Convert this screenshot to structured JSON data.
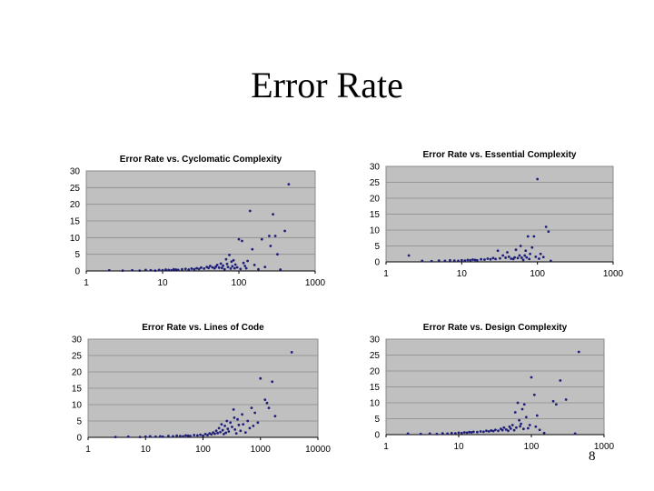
{
  "slide": {
    "title": "Error Rate",
    "page_number": "8"
  },
  "colors": {
    "plot_area": "#c0c0c0",
    "point": "#1f1f7a",
    "gridline": "#8a8a8a",
    "axis": "#000000"
  },
  "chart_data": [
    {
      "type": "scatter",
      "title": "Error Rate vs. Cyclomatic Complexity",
      "xlabel": "",
      "ylabel": "",
      "xscale": "log",
      "xlim": [
        1,
        1000
      ],
      "ylim": [
        0,
        30
      ],
      "xticks": [
        "1",
        "10",
        "100",
        "1000"
      ],
      "yticks": [
        "0",
        "5",
        "10",
        "15",
        "20",
        "25",
        "30"
      ],
      "grid": true,
      "points": [
        [
          2,
          0.2
        ],
        [
          3,
          0.1
        ],
        [
          4,
          0.2
        ],
        [
          5,
          0.1
        ],
        [
          6,
          0.3
        ],
        [
          7,
          0.2
        ],
        [
          8,
          0.1
        ],
        [
          9,
          0.3
        ],
        [
          10,
          0.2
        ],
        [
          11,
          0.4
        ],
        [
          12,
          0.3
        ],
        [
          13,
          0.2
        ],
        [
          14,
          0.5
        ],
        [
          15,
          0.4
        ],
        [
          16,
          0.3
        ],
        [
          18,
          0.5
        ],
        [
          20,
          0.6
        ],
        [
          22,
          0.4
        ],
        [
          24,
          0.7
        ],
        [
          26,
          0.5
        ],
        [
          28,
          0.8
        ],
        [
          30,
          0.6
        ],
        [
          32,
          1.0
        ],
        [
          35,
          0.7
        ],
        [
          38,
          1.2
        ],
        [
          40,
          0.9
        ],
        [
          42,
          1.5
        ],
        [
          45,
          1.1
        ],
        [
          48,
          0.8
        ],
        [
          50,
          1.3
        ],
        [
          52,
          1.8
        ],
        [
          55,
          1.0
        ],
        [
          58,
          2.2
        ],
        [
          60,
          0.9
        ],
        [
          62,
          1.6
        ],
        [
          65,
          0.5
        ],
        [
          68,
          3.5
        ],
        [
          70,
          2.1
        ],
        [
          72,
          1.2
        ],
        [
          75,
          4.8
        ],
        [
          78,
          0.7
        ],
        [
          80,
          2.8
        ],
        [
          82,
          1.4
        ],
        [
          85,
          3.2
        ],
        [
          88,
          0.8
        ],
        [
          90,
          1.9
        ],
        [
          95,
          1.1
        ],
        [
          100,
          9.5
        ],
        [
          105,
          0.6
        ],
        [
          110,
          9.0
        ],
        [
          115,
          2.4
        ],
        [
          120,
          1.5
        ],
        [
          125,
          0.8
        ],
        [
          130,
          3.0
        ],
        [
          140,
          18.0
        ],
        [
          150,
          6.5
        ],
        [
          160,
          1.8
        ],
        [
          180,
          0.5
        ],
        [
          200,
          9.5
        ],
        [
          220,
          1.2
        ],
        [
          250,
          10.5
        ],
        [
          260,
          7.5
        ],
        [
          280,
          17.0
        ],
        [
          300,
          10.5
        ],
        [
          320,
          5.0
        ],
        [
          350,
          0.4
        ],
        [
          400,
          12.0
        ],
        [
          450,
          26.0
        ]
      ]
    },
    {
      "type": "scatter",
      "title": "Error Rate vs. Essential Complexity",
      "xlabel": "",
      "ylabel": "",
      "xscale": "log",
      "xlim": [
        1,
        1000
      ],
      "ylim": [
        0,
        30
      ],
      "xticks": [
        "1",
        "10",
        "100",
        "1000"
      ],
      "yticks": [
        "0",
        "5",
        "10",
        "15",
        "20",
        "25",
        "30"
      ],
      "grid": true,
      "points": [
        [
          2,
          2.0
        ],
        [
          3,
          0.3
        ],
        [
          4,
          0.2
        ],
        [
          5,
          0.4
        ],
        [
          6,
          0.3
        ],
        [
          7,
          0.5
        ],
        [
          8,
          0.4
        ],
        [
          9,
          0.3
        ],
        [
          10,
          0.5
        ],
        [
          11,
          0.4
        ],
        [
          12,
          0.6
        ],
        [
          13,
          0.5
        ],
        [
          14,
          0.7
        ],
        [
          15,
          0.6
        ],
        [
          16,
          0.5
        ],
        [
          18,
          0.8
        ],
        [
          20,
          0.7
        ],
        [
          22,
          1.0
        ],
        [
          24,
          0.8
        ],
        [
          26,
          1.2
        ],
        [
          28,
          0.9
        ],
        [
          30,
          3.5
        ],
        [
          32,
          1.1
        ],
        [
          35,
          2.0
        ],
        [
          38,
          1.3
        ],
        [
          40,
          3.0
        ],
        [
          42,
          1.6
        ],
        [
          45,
          1.0
        ],
        [
          48,
          0.9
        ],
        [
          50,
          1.4
        ],
        [
          52,
          3.8
        ],
        [
          55,
          1.2
        ],
        [
          58,
          2.0
        ],
        [
          60,
          5.0
        ],
        [
          62,
          1.3
        ],
        [
          65,
          0.6
        ],
        [
          68,
          2.0
        ],
        [
          70,
          3.5
        ],
        [
          72,
          1.4
        ],
        [
          75,
          8.0
        ],
        [
          78,
          0.9
        ],
        [
          80,
          2.5
        ],
        [
          85,
          4.5
        ],
        [
          90,
          8.0
        ],
        [
          95,
          1.6
        ],
        [
          100,
          26.0
        ],
        [
          105,
          1.0
        ],
        [
          110,
          2.5
        ],
        [
          120,
          1.5
        ],
        [
          130,
          11.0
        ],
        [
          140,
          9.5
        ],
        [
          150,
          0.3
        ]
      ]
    },
    {
      "type": "scatter",
      "title": "Error Rate vs. Lines of Code",
      "xlabel": "",
      "ylabel": "",
      "xscale": "log",
      "xlim": [
        1,
        10000
      ],
      "ylim": [
        0,
        30
      ],
      "xticks": [
        "1",
        "10",
        "100",
        "1000",
        "10000"
      ],
      "yticks": [
        "0",
        "5",
        "10",
        "15",
        "20",
        "25",
        "30"
      ],
      "grid": true,
      "points": [
        [
          3,
          0.1
        ],
        [
          5,
          0.2
        ],
        [
          8,
          0.1
        ],
        [
          10,
          0.2
        ],
        [
          12,
          0.3
        ],
        [
          15,
          0.2
        ],
        [
          18,
          0.3
        ],
        [
          20,
          0.2
        ],
        [
          25,
          0.4
        ],
        [
          30,
          0.3
        ],
        [
          35,
          0.5
        ],
        [
          40,
          0.4
        ],
        [
          45,
          0.3
        ],
        [
          50,
          0.6
        ],
        [
          55,
          0.5
        ],
        [
          60,
          0.4
        ],
        [
          70,
          0.7
        ],
        [
          80,
          0.6
        ],
        [
          90,
          0.8
        ],
        [
          100,
          0.5
        ],
        [
          110,
          1.0
        ],
        [
          120,
          0.7
        ],
        [
          130,
          1.2
        ],
        [
          140,
          0.9
        ],
        [
          150,
          1.5
        ],
        [
          160,
          1.1
        ],
        [
          170,
          2.0
        ],
        [
          180,
          1.3
        ],
        [
          190,
          2.8
        ],
        [
          200,
          1.6
        ],
        [
          210,
          4.0
        ],
        [
          220,
          2.2
        ],
        [
          230,
          1.0
        ],
        [
          240,
          3.5
        ],
        [
          250,
          1.4
        ],
        [
          260,
          5.0
        ],
        [
          270,
          2.6
        ],
        [
          280,
          1.8
        ],
        [
          300,
          4.5
        ],
        [
          320,
          3.2
        ],
        [
          340,
          8.5
        ],
        [
          350,
          6.0
        ],
        [
          360,
          2.4
        ],
        [
          380,
          1.2
        ],
        [
          400,
          5.5
        ],
        [
          420,
          3.8
        ],
        [
          450,
          2.0
        ],
        [
          480,
          7.0
        ],
        [
          500,
          4.0
        ],
        [
          550,
          1.5
        ],
        [
          600,
          5.0
        ],
        [
          650,
          2.8
        ],
        [
          700,
          9.0
        ],
        [
          750,
          3.5
        ],
        [
          800,
          7.5
        ],
        [
          900,
          4.5
        ],
        [
          1000,
          18.0
        ],
        [
          1200,
          11.5
        ],
        [
          1300,
          10.5
        ],
        [
          1400,
          9.0
        ],
        [
          1600,
          17.0
        ],
        [
          1800,
          6.5
        ],
        [
          3500,
          26.0
        ]
      ]
    },
    {
      "type": "scatter",
      "title": "Error Rate vs. Design Complexity",
      "xlabel": "",
      "ylabel": "",
      "xscale": "log",
      "xlim": [
        1,
        1000
      ],
      "ylim": [
        0,
        30
      ],
      "xticks": [
        "1",
        "10",
        "100",
        "1000"
      ],
      "yticks": [
        "0",
        "5",
        "10",
        "15",
        "20",
        "25",
        "30"
      ],
      "grid": true,
      "points": [
        [
          2,
          0.3
        ],
        [
          3,
          0.2
        ],
        [
          4,
          0.3
        ],
        [
          5,
          0.2
        ],
        [
          6,
          0.4
        ],
        [
          7,
          0.3
        ],
        [
          8,
          0.5
        ],
        [
          9,
          0.4
        ],
        [
          10,
          0.6
        ],
        [
          11,
          0.5
        ],
        [
          12,
          0.7
        ],
        [
          13,
          0.6
        ],
        [
          14,
          0.8
        ],
        [
          15,
          0.7
        ],
        [
          16,
          0.9
        ],
        [
          18,
          0.8
        ],
        [
          20,
          1.0
        ],
        [
          22,
          0.9
        ],
        [
          24,
          1.2
        ],
        [
          26,
          1.0
        ],
        [
          28,
          1.3
        ],
        [
          30,
          1.1
        ],
        [
          32,
          1.5
        ],
        [
          35,
          1.2
        ],
        [
          38,
          1.8
        ],
        [
          40,
          1.4
        ],
        [
          42,
          2.2
        ],
        [
          45,
          1.6
        ],
        [
          48,
          1.2
        ],
        [
          50,
          2.5
        ],
        [
          52,
          1.9
        ],
        [
          55,
          3.0
        ],
        [
          58,
          1.4
        ],
        [
          60,
          7.0
        ],
        [
          62,
          2.2
        ],
        [
          65,
          10.0
        ],
        [
          68,
          4.5
        ],
        [
          70,
          2.6
        ],
        [
          72,
          3.4
        ],
        [
          75,
          8.0
        ],
        [
          78,
          1.8
        ],
        [
          80,
          9.5
        ],
        [
          85,
          5.5
        ],
        [
          90,
          2.0
        ],
        [
          95,
          3.0
        ],
        [
          100,
          18.0
        ],
        [
          110,
          12.5
        ],
        [
          115,
          2.5
        ],
        [
          120,
          6.0
        ],
        [
          130,
          1.5
        ],
        [
          150,
          0.5
        ],
        [
          200,
          10.5
        ],
        [
          220,
          9.5
        ],
        [
          250,
          17.0
        ],
        [
          300,
          11.0
        ],
        [
          400,
          0.3
        ],
        [
          450,
          26.0
        ]
      ]
    }
  ]
}
